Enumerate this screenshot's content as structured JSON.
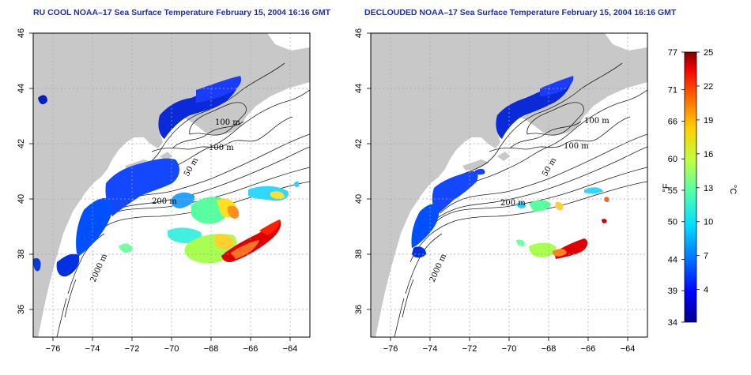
{
  "titles": {
    "left": "RU COOL NOAA–17 Sea Surface Temperature February 15, 2004 16:16 GMT",
    "right": "DECLOUDED NOAA–17 Sea Surface Temperature February 15, 2004 16:16 GMT"
  },
  "axes": {
    "x_ticks": [
      "−76",
      "−74",
      "−72",
      "−70",
      "−68",
      "−66",
      "−64"
    ],
    "x_values": [
      -76,
      -74,
      -72,
      -70,
      -68,
      -66,
      -64
    ],
    "y_ticks": [
      "36",
      "38",
      "40",
      "42",
      "44",
      "46"
    ],
    "y_values": [
      36,
      38,
      40,
      42,
      44,
      46
    ],
    "lon_range": [
      -77,
      -63
    ],
    "lat_range": [
      35,
      46
    ]
  },
  "contour_labels": {
    "c100a": "100 m",
    "c100b": "100 m",
    "c50": "50 m",
    "c200": "200 m",
    "c2000": "2000 m"
  },
  "colorbar": {
    "f_ticks": [
      "77",
      "71",
      "66",
      "60",
      "55",
      "50",
      "44",
      "39",
      "34"
    ],
    "c_ticks": [
      "25",
      "22",
      "19",
      "16",
      "13",
      "10",
      "7",
      "4"
    ],
    "f_label": "°F",
    "c_label": "°C",
    "f_range": [
      34,
      77
    ],
    "c_ticks_values": [
      25,
      22,
      19,
      16,
      13,
      10,
      7,
      4
    ]
  },
  "colors": {
    "land": "#c8c8c8",
    "ocean": "#ffffff",
    "title": "#1f2fb0",
    "grid": "#a8a8a8",
    "colormap": [
      "#00008f",
      "#0000ff",
      "#0070ff",
      "#00dfff",
      "#50ffaf",
      "#bfff40",
      "#ffd000",
      "#ff6000",
      "#ef0000",
      "#800000"
    ]
  }
}
